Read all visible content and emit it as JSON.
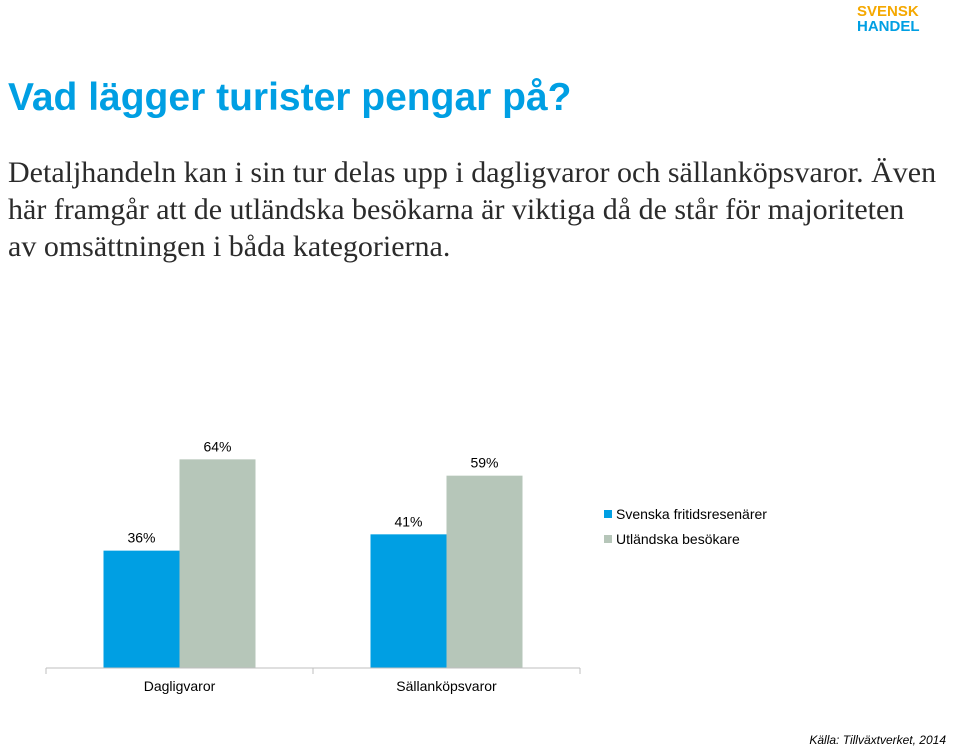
{
  "slide": {
    "title": "Vad lägger turister pengar på?",
    "body": "Detaljhandeln kan i sin tur delas upp i dagligvaror och sällanköpsvaror. Även här framgår att de utländska besökarna är viktiga då de står för majoriteten av omsättningen i båda kategorierna.",
    "source": "Källa: Tillväxtverket, 2014"
  },
  "logo": {
    "line1": "SVENSK",
    "line2": "HANDEL",
    "color_top": "#f5a800",
    "color_bottom": "#009fe3"
  },
  "chart_data": {
    "type": "bar",
    "categories": [
      "Dagligvaror",
      "Sällanköpsvaror"
    ],
    "series": [
      {
        "name": "Svenska fritidsresenärer",
        "values": [
          36,
          41
        ],
        "labels": [
          "36%",
          "41%"
        ],
        "color": "#009fe3"
      },
      {
        "name": "Utländska besökare",
        "values": [
          64,
          59
        ],
        "labels": [
          "64%",
          "59%"
        ],
        "color": "#b6c6b9"
      }
    ],
    "ylim": [
      0,
      100
    ],
    "grid": false,
    "legend": "right"
  }
}
